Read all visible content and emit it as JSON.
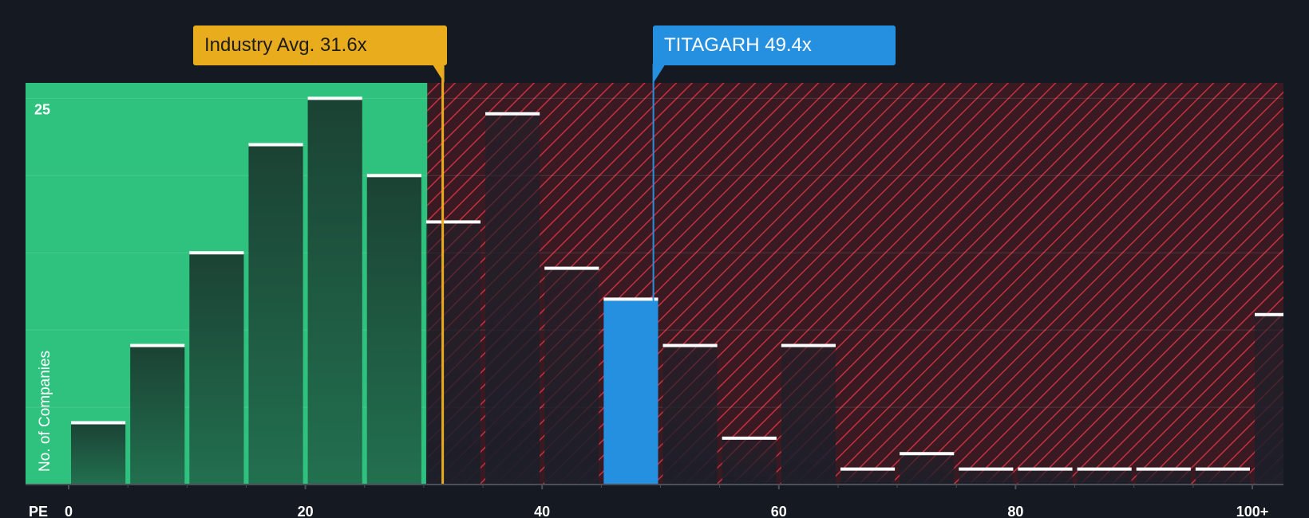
{
  "chart_data": {
    "type": "bar",
    "xlabel": "PE",
    "ylabel": "No. of Companies",
    "x_ticks": [
      {
        "value": 0,
        "label": "0"
      },
      {
        "value": 20,
        "label": "20"
      },
      {
        "value": 40,
        "label": "40"
      },
      {
        "value": 60,
        "label": "60"
      },
      {
        "value": 80,
        "label": "80"
      },
      {
        "value": 100,
        "label": "100+"
      }
    ],
    "xlim": [
      0,
      105
    ],
    "y_ticks": [
      {
        "value": 25,
        "label": "25"
      }
    ],
    "ylim": [
      0,
      26
    ],
    "bin_width": 5,
    "bins": [
      {
        "start": 0,
        "value": 4
      },
      {
        "start": 5,
        "value": 9
      },
      {
        "start": 10,
        "value": 15
      },
      {
        "start": 15,
        "value": 22
      },
      {
        "start": 20,
        "value": 25
      },
      {
        "start": 25,
        "value": 20
      },
      {
        "start": 30,
        "value": 17
      },
      {
        "start": 35,
        "value": 24
      },
      {
        "start": 40,
        "value": 14
      },
      {
        "start": 45,
        "value": 12
      },
      {
        "start": 50,
        "value": 9
      },
      {
        "start": 55,
        "value": 3
      },
      {
        "start": 60,
        "value": 9
      },
      {
        "start": 65,
        "value": 1
      },
      {
        "start": 70,
        "value": 2
      },
      {
        "start": 75,
        "value": 1
      },
      {
        "start": 80,
        "value": 1
      },
      {
        "start": 85,
        "value": 1
      },
      {
        "start": 90,
        "value": 1
      },
      {
        "start": 95,
        "value": 1
      },
      {
        "start": 100,
        "value": 11
      }
    ],
    "highlight_bin_start": 45,
    "fair_range": [
      0,
      30.3
    ],
    "industry_avg": {
      "label": "Industry Avg. 31.6x",
      "value": 31.6
    },
    "company": {
      "label": "TITAGARH 49.4x",
      "value": 49.4
    },
    "grid": true,
    "colors": {
      "background": "#151a22",
      "fair_zone": "#2ec27e",
      "fair_bar": "#1e4a3d",
      "over_zone": "#3a1a22",
      "over_hatch": "#c6313f",
      "company_bar": "#2690e0",
      "industry": "#e9ac1d",
      "bar_cap": "#ffffff",
      "axis_text": "#ffffff"
    }
  }
}
